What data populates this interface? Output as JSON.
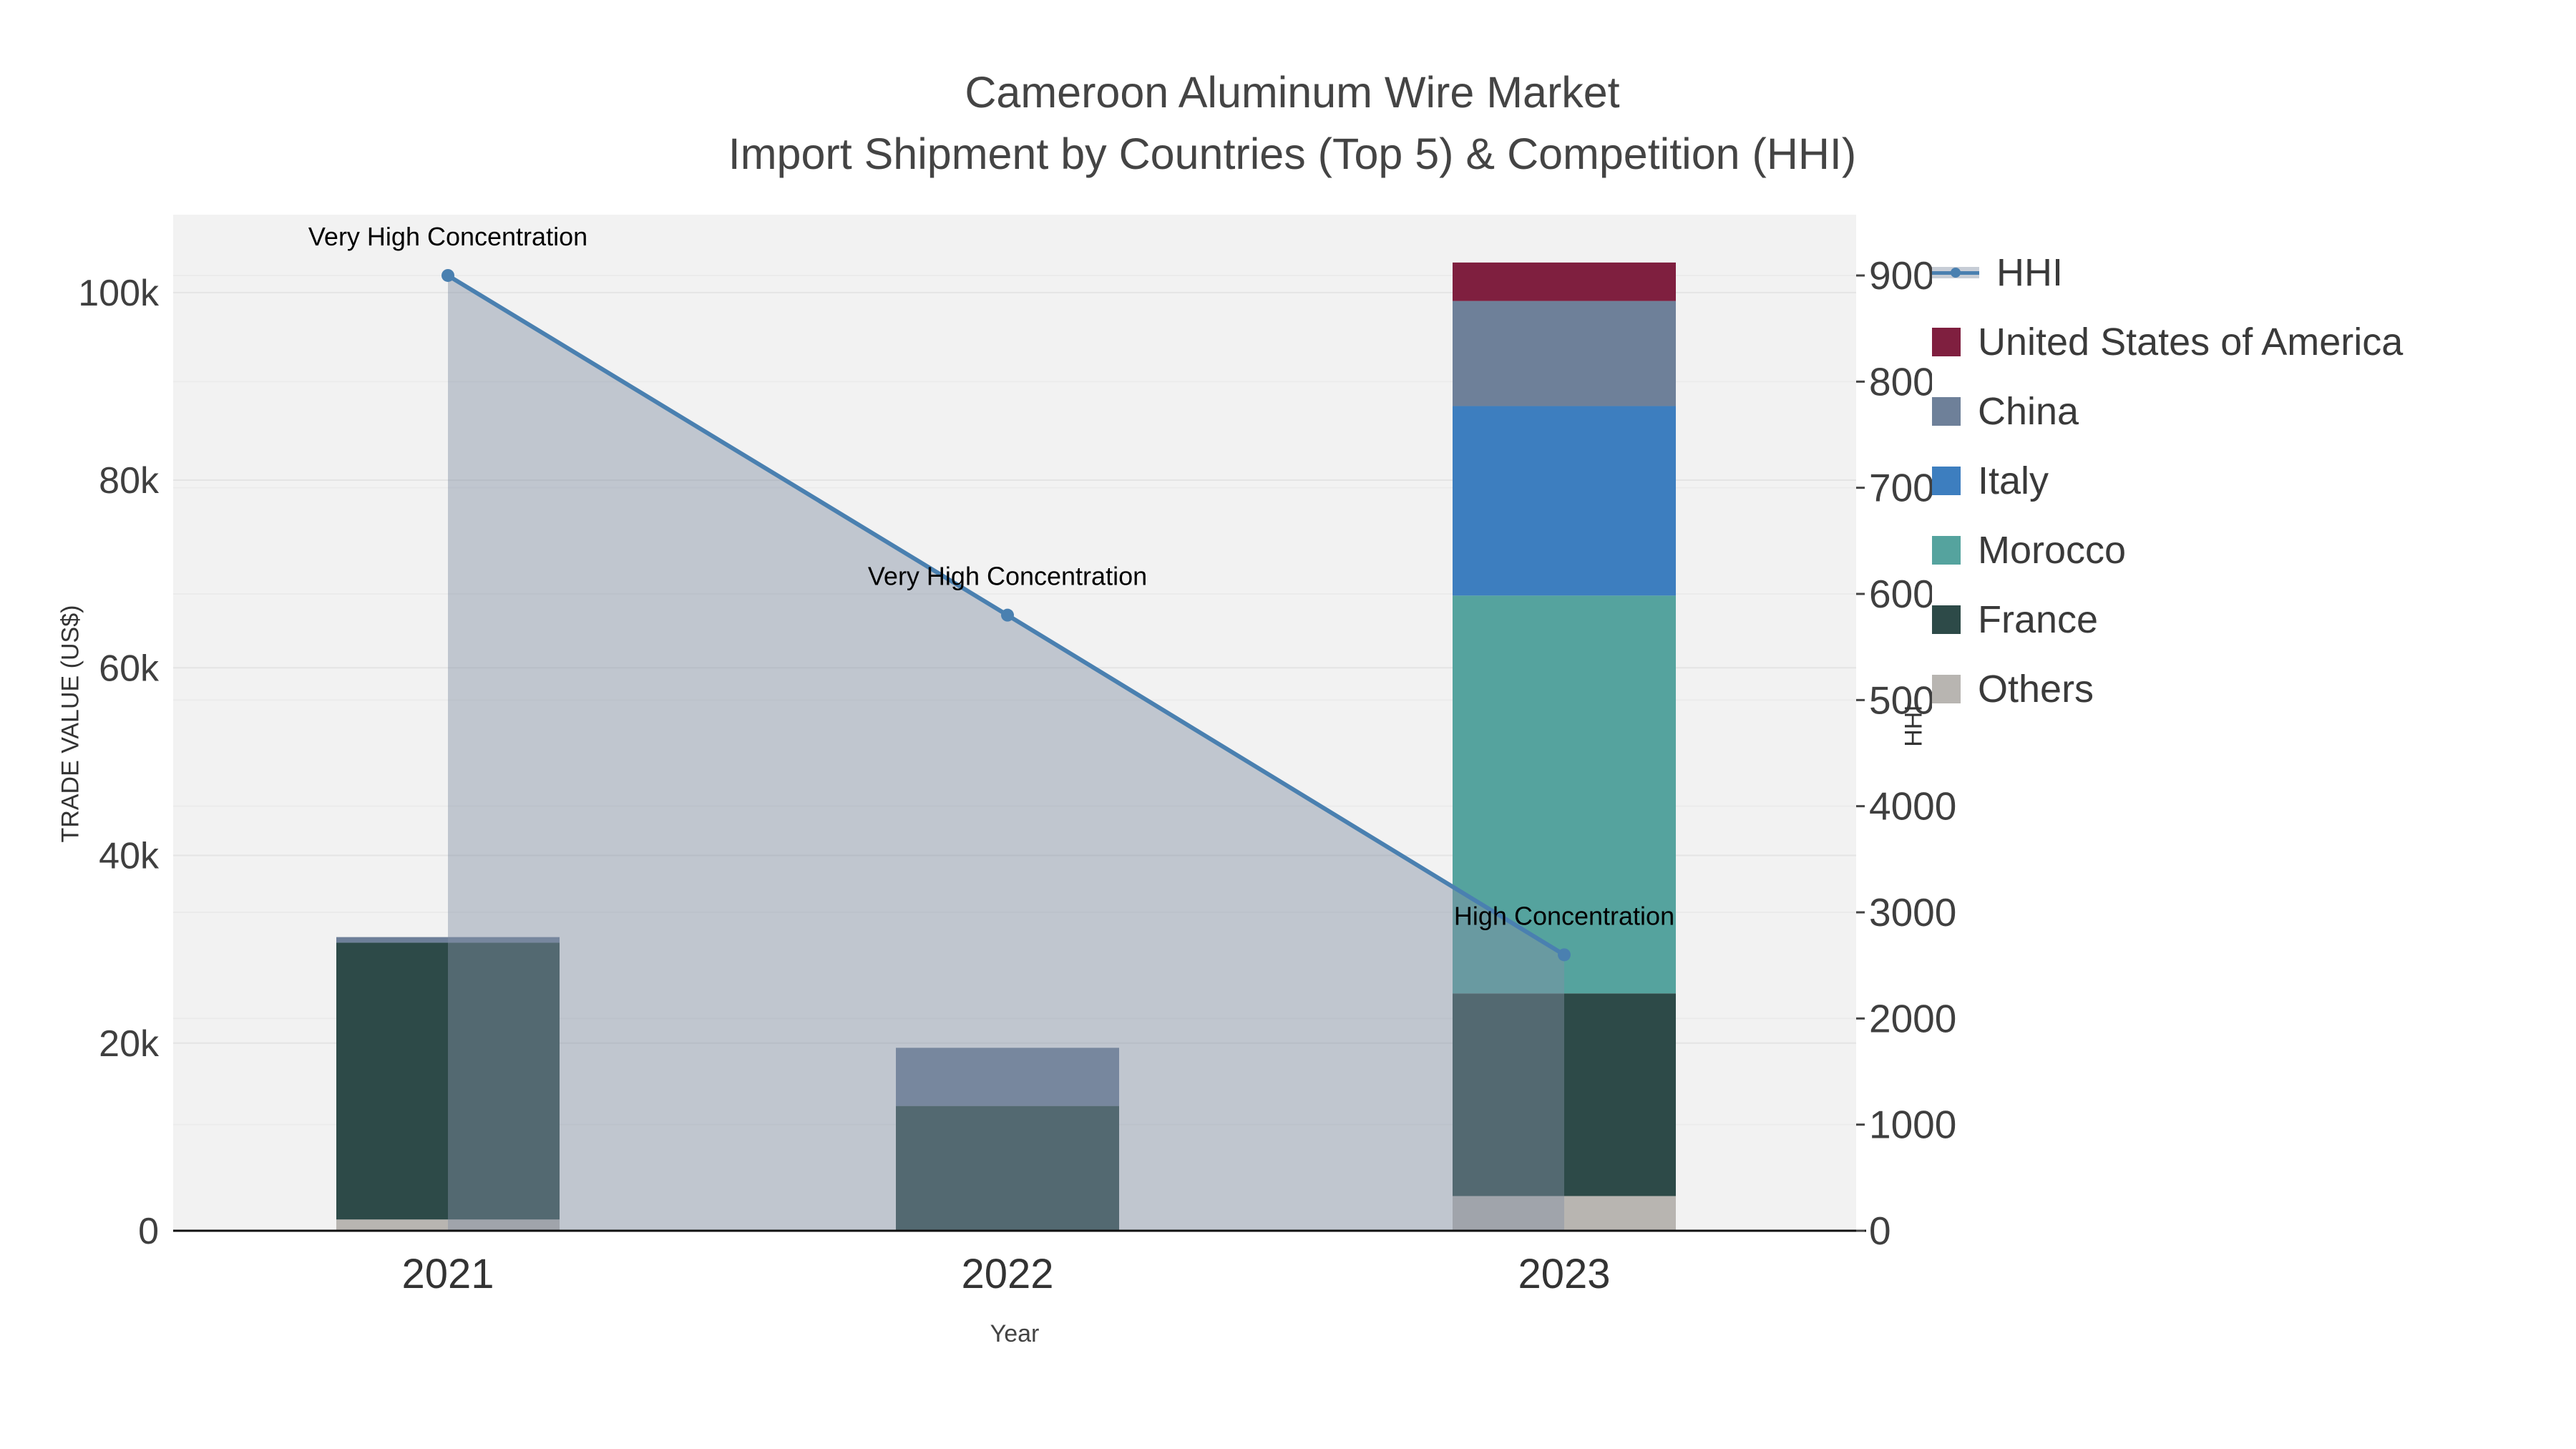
{
  "title": {
    "line1": "Cameroon Aluminum Wire Market",
    "line2": "Import Shipment by Countries (Top 5) & Competition (HHI)"
  },
  "chart_data": {
    "type": "combo-stacked-bar-line",
    "categories": [
      "2021",
      "2022",
      "2023"
    ],
    "bar_series": [
      {
        "name": "Others",
        "color": "#b8b5b1",
        "values": [
          1200,
          0,
          3700
        ]
      },
      {
        "name": "France",
        "color": "#2d4a48",
        "values": [
          29500,
          13300,
          21600
        ]
      },
      {
        "name": "Morocco",
        "color": "#55a39e",
        "values": [
          0,
          0,
          42400
        ]
      },
      {
        "name": "Italy",
        "color": "#3d7ebf",
        "values": [
          0,
          0,
          20200
        ]
      },
      {
        "name": "China",
        "color": "#6e8099",
        "values": [
          600,
          6200,
          11200
        ]
      },
      {
        "name": "United States of America",
        "color": "#7f1f3f",
        "values": [
          0,
          0,
          4100
        ]
      }
    ],
    "line_series": {
      "name": "HHI",
      "color": "#4a80b0",
      "area_color": "rgba(130,145,165,0.45)",
      "values": [
        9000,
        5800,
        2600
      ]
    },
    "annotations": [
      "Very High Concentration",
      "Very High Concentration",
      "High Concentration"
    ],
    "left_axis": {
      "label": "TRADE VALUE (US$)",
      "ticks": [
        0,
        20000,
        40000,
        60000,
        80000,
        100000
      ],
      "tick_labels": [
        "0",
        "20k",
        "40k",
        "60k",
        "80k",
        "100k"
      ],
      "max": 108300
    },
    "right_axis": {
      "label": "HHI",
      "ticks": [
        0,
        1000,
        2000,
        3000,
        4000,
        5000,
        6000,
        7000,
        8000,
        9000
      ],
      "tick_labels": [
        "0",
        "1000",
        "2000",
        "3000",
        "4000",
        "5000",
        "6000",
        "7000",
        "8000",
        "9000"
      ],
      "max": 9573
    },
    "x_axis": {
      "label": "Year"
    },
    "plot_background": "#f2f2f2",
    "gridline_color": "#e4e4e4",
    "axis_line_color": "#111111"
  },
  "legend": {
    "items": [
      {
        "label": "HHI",
        "type": "line",
        "color": "#4a80b0"
      },
      {
        "label": "United States of America",
        "type": "swatch",
        "color": "#7f1f3f"
      },
      {
        "label": "China",
        "type": "swatch",
        "color": "#6e8099"
      },
      {
        "label": "Italy",
        "type": "swatch",
        "color": "#3d7ebf"
      },
      {
        "label": "Morocco",
        "type": "swatch",
        "color": "#55a39e"
      },
      {
        "label": "France",
        "type": "swatch",
        "color": "#2d4a48"
      },
      {
        "label": "Others",
        "type": "swatch",
        "color": "#b8b5b1"
      }
    ]
  }
}
